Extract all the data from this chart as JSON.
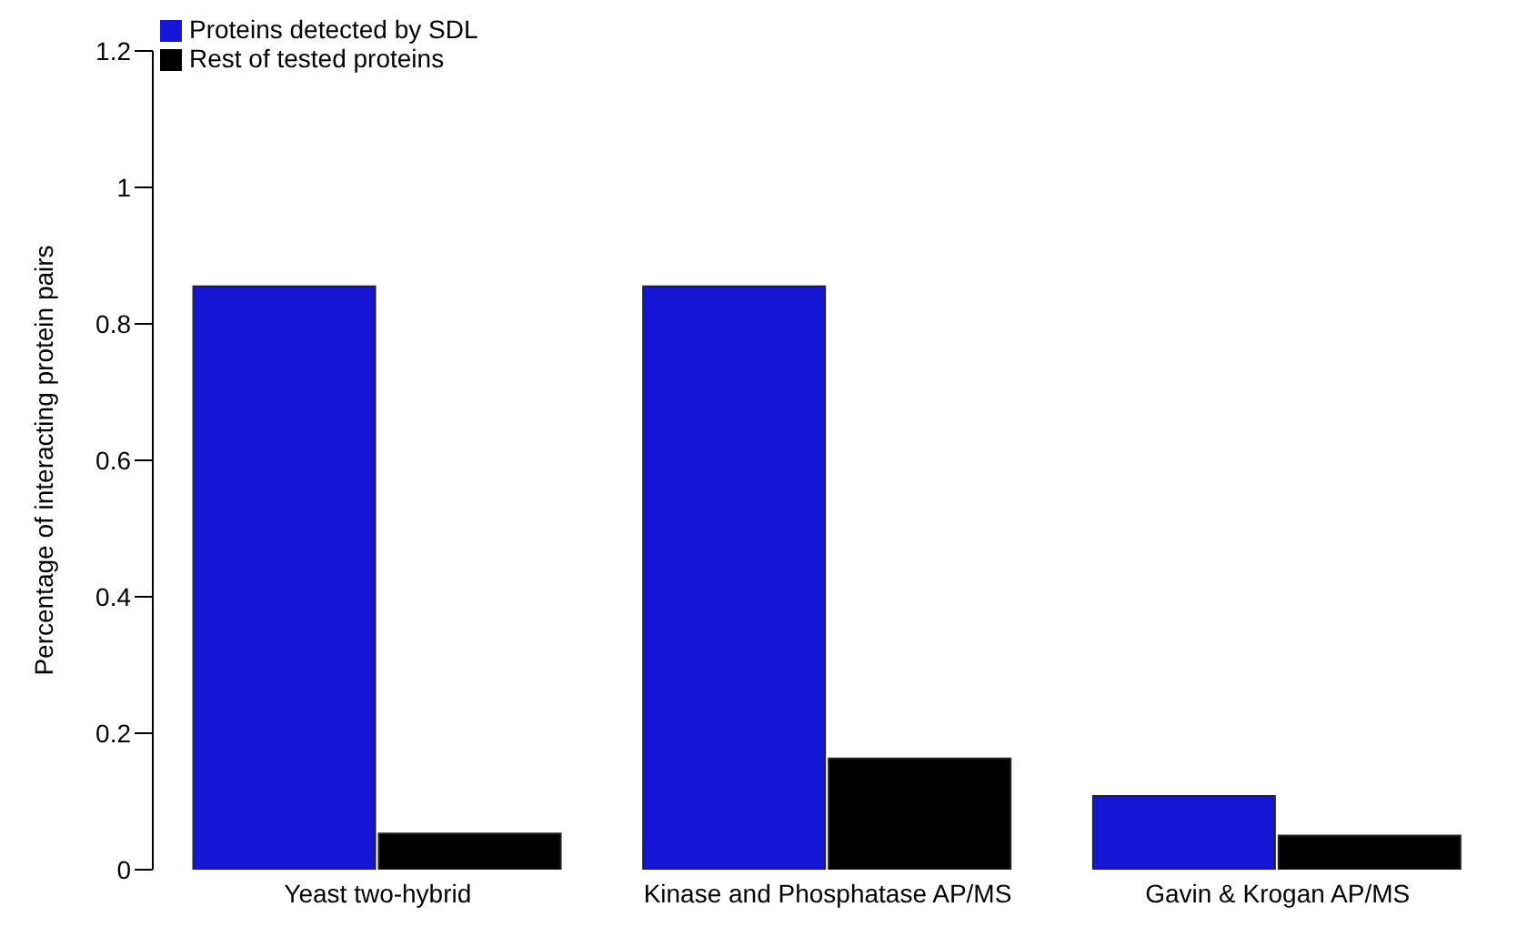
{
  "chart_data": {
    "type": "bar",
    "ylabel": "Percentage of interacting protein pairs",
    "categories": [
      "Yeast two-hybrid",
      "Kinase and Phosphatase AP/MS",
      "Gavin & Krogan AP/MS"
    ],
    "series": [
      {
        "name": "Proteins detected by SDL",
        "color": "#1616d6",
        "values": [
          0.855,
          0.855,
          0.108
        ]
      },
      {
        "name": "Rest of tested proteins",
        "color": "#000000",
        "values": [
          0.053,
          0.163,
          0.05
        ]
      }
    ],
    "ylim": [
      0,
      1.2
    ],
    "yticks": [
      0,
      0.2,
      0.4,
      0.6,
      0.8,
      1,
      1.2
    ],
    "grid": false,
    "legend": "top left"
  }
}
